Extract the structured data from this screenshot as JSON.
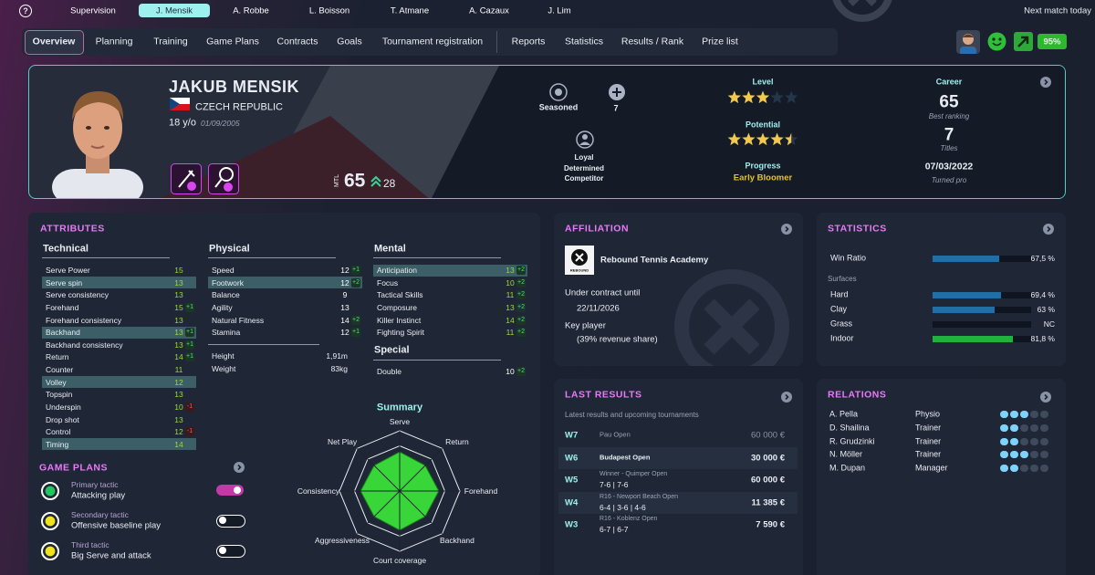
{
  "top_bar": {
    "help": "?",
    "tabs": [
      "Supervision",
      "J. Mensik",
      "A. Robbe",
      "L. Boisson",
      "T. Atmane",
      "A. Cazaux",
      "J. Lim"
    ],
    "active_tab": 1,
    "next_match": "Next match today"
  },
  "nav": {
    "items": [
      "Overview",
      "Planning",
      "Training",
      "Game Plans",
      "Contracts",
      "Goals",
      "Tournament registration",
      "Reports",
      "Statistics",
      "Results / Rank",
      "Prize list"
    ],
    "active": 0,
    "morale": "95%"
  },
  "player": {
    "name": "JAKUB MENSIK",
    "country": "CZECH REPUBLIC",
    "age": "18 y/o",
    "birth_date": "01/09/2005",
    "mtl_label": "MTL",
    "mtl": 65,
    "mtl_gain": 28
  },
  "traits": {
    "experience": "Seasoned",
    "count": 7,
    "personality": [
      "Loyal",
      "Determined",
      "Competitor"
    ]
  },
  "level": {
    "label": "Level",
    "stars": 3
  },
  "potential": {
    "label": "Potential",
    "stars": 4.5
  },
  "progress": {
    "label": "Progress",
    "value": "Early Bloomer"
  },
  "career": {
    "title": "Career",
    "best_ranking": 65,
    "best_ranking_label": "Best ranking",
    "titles": 7,
    "titles_label": "Titles",
    "turned_pro_date": "07/03/2022",
    "turned_pro_label": "Turned pro"
  },
  "attributes": {
    "title": "ATTRIBUTES",
    "groups": [
      {
        "title": "Technical",
        "value_color": "#9fd83a",
        "rows": [
          {
            "name": "Serve Power",
            "value": 15
          },
          {
            "name": "Serve spin",
            "value": 13,
            "highlight": true
          },
          {
            "name": "Serve consistency",
            "value": 13
          },
          {
            "name": "Forehand",
            "value": 15,
            "change": "+1"
          },
          {
            "name": "Forehand consistency",
            "value": 13
          },
          {
            "name": "Backhand",
            "value": 13,
            "change": "+1",
            "highlight": true
          },
          {
            "name": "Backhand consistency",
            "value": 13,
            "change": "+1"
          },
          {
            "name": "Return",
            "value": 14,
            "change": "+1"
          },
          {
            "name": "Counter",
            "value": 11
          },
          {
            "name": "Volley",
            "value": 12,
            "highlight": true
          },
          {
            "name": "Topspin",
            "value": 13
          },
          {
            "name": "Underspin",
            "value": 10,
            "change": "-1"
          },
          {
            "name": "Drop shot",
            "value": 13
          },
          {
            "name": "Control",
            "value": 12,
            "change": "-1"
          },
          {
            "name": "Timing",
            "value": 14,
            "highlight": true
          }
        ]
      },
      {
        "title": "Physical",
        "value_color": "#ffffff",
        "rows": [
          {
            "name": "Speed",
            "value": 12,
            "change": "+1"
          },
          {
            "name": "Footwork",
            "value": 12,
            "change": "+2",
            "highlight": true
          },
          {
            "name": "Balance",
            "value": 9
          },
          {
            "name": "Agility",
            "value": 13
          },
          {
            "name": "Natural Fitness",
            "value": 14,
            "change": "+2"
          },
          {
            "name": "Stamina",
            "value": 12,
            "change": "+1"
          }
        ]
      },
      {
        "title": "Mental",
        "value_color": "#9fd83a",
        "rows": [
          {
            "name": "Anticipation",
            "value": 13,
            "change": "+2",
            "highlight": true
          },
          {
            "name": "Focus",
            "value": 10,
            "change": "+2"
          },
          {
            "name": "Tactical Skills",
            "value": 11,
            "change": "+2"
          },
          {
            "name": "Composure",
            "value": 13,
            "change": "+2"
          },
          {
            "name": "Killer Instinct",
            "value": 14,
            "change": "+2"
          },
          {
            "name": "Fighting Spirit",
            "value": 11,
            "change": "+2"
          }
        ]
      }
    ],
    "physique": [
      {
        "name": "Height",
        "value": "1,91m"
      },
      {
        "name": "Weight",
        "value": "83kg"
      }
    ],
    "special": {
      "title": "Special",
      "value_color": "#ffffff",
      "rows": [
        {
          "name": "Double",
          "value": 10,
          "change": "+2"
        }
      ]
    }
  },
  "summary": {
    "title": "Summary",
    "axes": [
      "Serve",
      "Return",
      "Forehand",
      "Backhand",
      "Court coverage",
      "Aggressiveness",
      "Consistency",
      "Net Play"
    ],
    "values": [
      13,
      12,
      13,
      12,
      13,
      12,
      13,
      12
    ],
    "rlim": [
      0,
      20
    ],
    "color": "#39d63a"
  },
  "game_plans": {
    "title": "GAME PLANS",
    "items": [
      {
        "label": "Primary tactic",
        "name": "Attacking play",
        "color": "#22c55e",
        "enabled": true
      },
      {
        "label": "Secondary tactic",
        "name": "Offensive baseline play",
        "color": "#f0e31c",
        "enabled": false
      },
      {
        "label": "Third tactic",
        "name": "Big Serve and attack",
        "color": "#f0e31c",
        "enabled": false
      }
    ]
  },
  "affiliation": {
    "title": "AFFILIATION",
    "academy": "Rebound Tennis Academy",
    "logo_text": "REBOUND",
    "contract_label": "Under contract until",
    "contract_end": "22/11/2026",
    "status": "Key player",
    "revenue_share": "(39% revenue share)"
  },
  "statistics": {
    "title": "STATISTICS",
    "xlim": [
      0,
      100
    ],
    "win_ratio": {
      "name": "Win Ratio",
      "value": 67.5,
      "value_label": "67,5 %",
      "color": "#1f6fa8"
    },
    "surfaces_title": "Surfaces",
    "surfaces": [
      {
        "name": "Hard",
        "value": 69.4,
        "value_label": "69,4 %",
        "color": "#1f6fa8"
      },
      {
        "name": "Clay",
        "value": 63,
        "value_label": "63 %",
        "color": "#1f6fa8"
      },
      {
        "name": "Grass",
        "value": null,
        "value_label": "NC",
        "color": "#1f6fa8"
      },
      {
        "name": "Indoor",
        "value": 81.8,
        "value_label": "81,8 %",
        "color": "#22b23c"
      }
    ]
  },
  "last_results": {
    "title": "LAST RESULTS",
    "subtitle": "Latest results and upcoming tournaments",
    "rows": [
      {
        "week": "W7",
        "event": "Pau Open",
        "prize": "60 000 €",
        "upcoming": true
      },
      {
        "week": "W6",
        "event": "Budapest Open",
        "prize": "30 000 €"
      },
      {
        "week": "W5",
        "event": "Winner - Quimper Open",
        "score": "7-6 | 7-6",
        "prize": "60 000 €"
      },
      {
        "week": "W4",
        "event": "R16 - Newport Beach Open",
        "score": "6-4 | 3-6 | 4-6",
        "prize": "11 385 €"
      },
      {
        "week": "W3",
        "event": "R16 - Koblenz Open",
        "score": "6-7 | 6-7",
        "prize": "7 590 €"
      }
    ]
  },
  "relations": {
    "title": "RELATIONS",
    "rows": [
      {
        "name": "A. Pella",
        "role": "Physio",
        "level": 3
      },
      {
        "name": "D. Shailina",
        "role": "Trainer",
        "level": 2
      },
      {
        "name": "R. Grudzinki",
        "role": "Trainer",
        "level": 2
      },
      {
        "name": "N. Möller",
        "role": "Trainer",
        "level": 3
      },
      {
        "name": "M. Dupan",
        "role": "Manager",
        "level": 2
      }
    ]
  }
}
